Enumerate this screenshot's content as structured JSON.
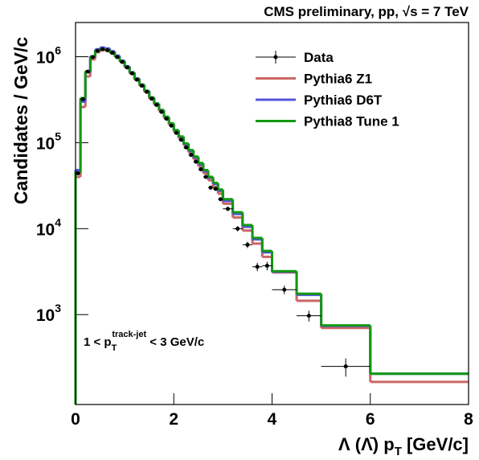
{
  "chart_data": {
    "type": "histogram",
    "title": "CMS preliminary, pp, √s = 7 TeV",
    "ylabel": "Candidates / GeV/c",
    "xlabel": {
      "text": "Λ (Λ̄) p",
      "sub": "T",
      "after": " [GeV/c]"
    },
    "annotation": {
      "text": "1 < p",
      "sub": "T",
      "sup": "track-jet",
      "after": " < 3 GeV/c"
    },
    "bins": [
      0,
      0.1,
      0.2,
      0.3,
      0.4,
      0.5,
      0.6,
      0.7,
      0.8,
      0.9,
      1.0,
      1.1,
      1.2,
      1.3,
      1.4,
      1.5,
      1.6,
      1.7,
      1.8,
      1.9,
      2.0,
      2.1,
      2.2,
      2.3,
      2.4,
      2.5,
      2.6,
      2.7,
      2.8,
      2.9,
      3.0,
      3.2,
      3.4,
      3.6,
      3.8,
      4.0,
      4.5,
      5,
      6,
      8
    ],
    "series": [
      {
        "name": "Pythia6 Z1",
        "color": "#cc6666",
        "values": [
          40000,
          260000,
          590000,
          930000,
          1130000,
          1200000,
          1180000,
          1100000,
          990000,
          870000,
          750000,
          640000,
          540000,
          460000,
          390000,
          325000,
          275000,
          232000,
          193000,
          161000,
          134000,
          112000,
          93000,
          77000,
          64000,
          53000,
          44000,
          36500,
          30500,
          25500,
          19500,
          13500,
          9500,
          6700,
          4700,
          3100,
          1450,
          700,
          165
        ]
      },
      {
        "name": "Pythia6 D6T",
        "color": "#5555dd",
        "values": [
          48000,
          300000,
          660000,
          1010000,
          1220000,
          1280000,
          1250000,
          1160000,
          1030000,
          900000,
          775000,
          660000,
          560000,
          475000,
          402000,
          337000,
          286000,
          240000,
          200000,
          167000,
          139000,
          116000,
          96000,
          80000,
          67000,
          56000,
          46500,
          39000,
          33000,
          27500,
          21000,
          14800,
          10500,
          7500,
          5300,
          3150,
          1700,
          740,
          205
        ]
      },
      {
        "name": "Pythia8 Tune 1",
        "color": "#119911",
        "values": [
          45000,
          330000,
          680000,
          1000000,
          1180000,
          1230000,
          1200000,
          1120000,
          1000000,
          880000,
          760000,
          650000,
          550000,
          470000,
          400000,
          335000,
          285000,
          240000,
          200000,
          168000,
          140000,
          118000,
          98000,
          82000,
          69000,
          58000,
          48000,
          40000,
          34000,
          28500,
          22000,
          15500,
          11000,
          7800,
          5500,
          3200,
          1750,
          750,
          205
        ]
      }
    ],
    "data": {
      "name": "Data",
      "color": "#000000",
      "values": [
        44000,
        320000,
        670000,
        990000,
        1170000,
        1220000,
        1190000,
        1110000,
        990000,
        870000,
        750000,
        640000,
        540000,
        460000,
        390000,
        325000,
        275000,
        228000,
        190000,
        158000,
        130000,
        108000,
        88000,
        72000,
        60000,
        49000,
        40000,
        30000,
        29000,
        22000,
        17000,
        10000,
        6500,
        3600,
        3700,
        1950,
        970,
        250,
        null
      ],
      "errors": [
        1500,
        8000,
        15000,
        20000,
        22000,
        23000,
        22000,
        21000,
        19000,
        17000,
        15000,
        13000,
        11000,
        9500,
        8000,
        6800,
        5800,
        5000,
        4200,
        3600,
        3000,
        2600,
        2200,
        1900,
        1700,
        1500,
        1300,
        1100,
        1100,
        1000,
        900,
        700,
        550,
        400,
        420,
        220,
        140,
        60,
        null
      ]
    },
    "xlim": [
      0,
      8
    ],
    "ylim": [
      90,
      2500000
    ],
    "xticks": [
      0,
      2,
      4,
      6,
      8
    ],
    "yticks": [
      {
        "value": 1000,
        "label": "10",
        "exponent": "3"
      },
      {
        "value": 10000,
        "label": "10",
        "exponent": "4"
      },
      {
        "value": 100000,
        "label": "10",
        "exponent": "5"
      },
      {
        "value": 1000000,
        "label": "10",
        "exponent": "6"
      }
    ],
    "log_y": true,
    "legend": "upper right"
  }
}
